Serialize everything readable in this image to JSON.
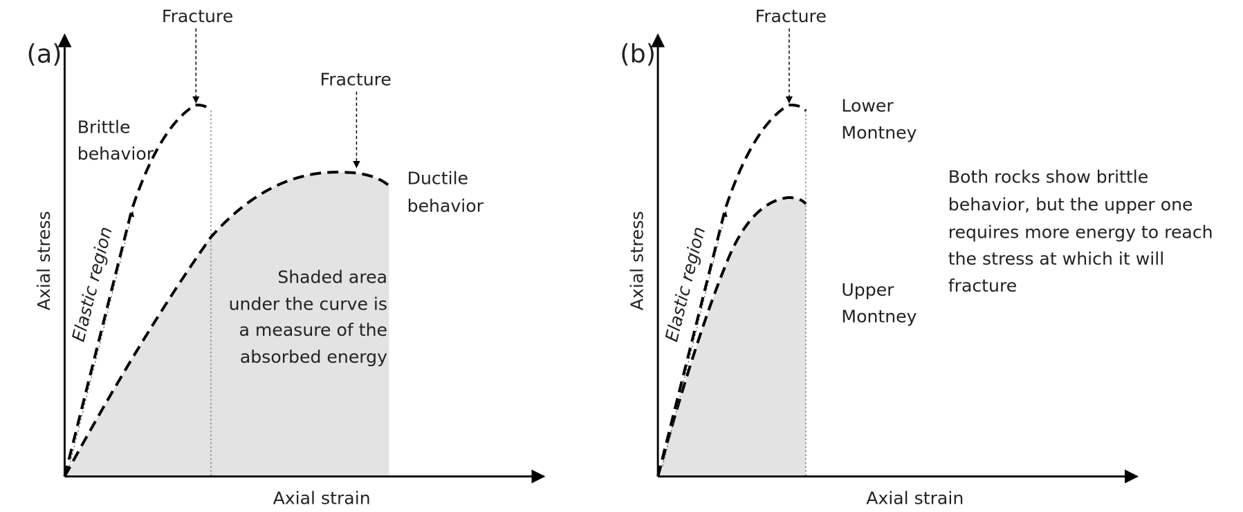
{
  "panels": [
    {
      "label": "(a)",
      "y_axis": "Axial stress",
      "x_axis": "Axial strain",
      "elastic": "Elastic region",
      "fracture_1": "Fracture",
      "fracture_2": "Fracture",
      "brittle": [
        "Brittle",
        "behavior"
      ],
      "ductile": [
        "Ductile",
        "behavior"
      ],
      "shaded_note": [
        "Shaded area",
        "under the curve is",
        "a measure of the",
        "absorbed energy"
      ]
    },
    {
      "label": "(b)",
      "y_axis": "Axial stress",
      "x_axis": "Axial strain",
      "elastic": "Elastic region",
      "fracture_1": "Fracture",
      "lower": [
        "Lower",
        "Montney"
      ],
      "upper": [
        "Upper",
        "Montney"
      ],
      "note": [
        "Both rocks show brittle",
        "behavior, but the upper one",
        "requires more energy to reach",
        "the stress at which it will",
        "fracture"
      ]
    }
  ]
}
